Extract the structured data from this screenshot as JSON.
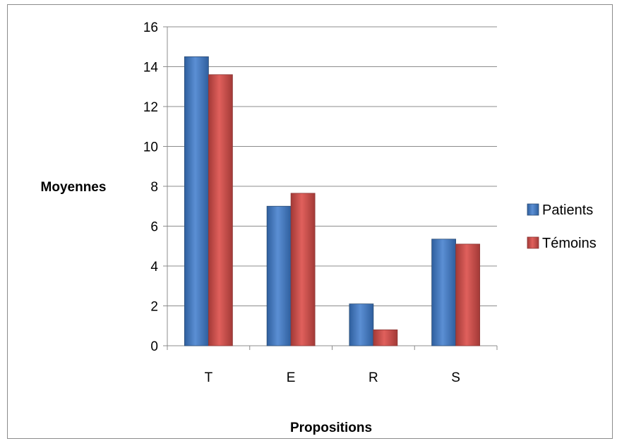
{
  "chart_data": {
    "type": "bar",
    "categories": [
      "T",
      "E",
      "R",
      "S"
    ],
    "series": [
      {
        "name": "Patients",
        "values": [
          14.5,
          7.0,
          2.1,
          5.35
        ],
        "color": "#4a7ebb"
      },
      {
        "name": "Témoins",
        "values": [
          13.6,
          7.65,
          0.8,
          5.1
        ],
        "color": "#c0504d"
      }
    ],
    "title": "",
    "xlabel": "Propositions",
    "ylabel": "Moyennes",
    "ylim": [
      0,
      16
    ],
    "yticks": [
      0,
      2,
      4,
      6,
      8,
      10,
      12,
      14,
      16
    ],
    "grid": true,
    "legend_position": "right"
  }
}
